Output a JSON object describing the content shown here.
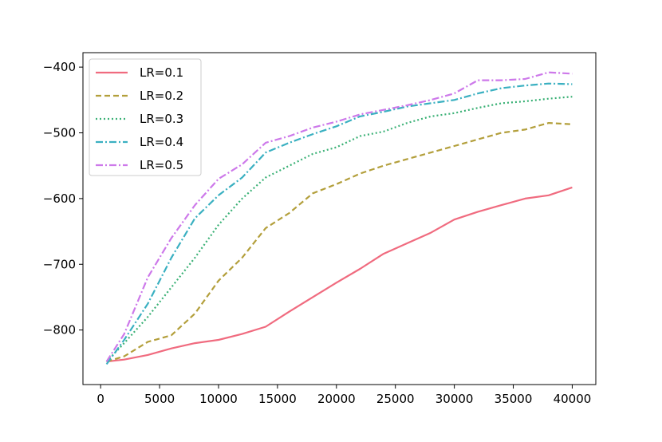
{
  "chart_data": {
    "type": "line",
    "title": "",
    "xlabel": "",
    "ylabel": "",
    "xlim": [
      -1500,
      42000
    ],
    "ylim": [
      -883,
      -378
    ],
    "grid": false,
    "legend_position": "top-left",
    "x_ticks": [
      0,
      5000,
      10000,
      15000,
      20000,
      25000,
      30000,
      35000,
      40000
    ],
    "x_tick_labels": [
      "0",
      "5000",
      "10000",
      "15000",
      "20000",
      "25000",
      "30000",
      "35000",
      "40000"
    ],
    "y_ticks": [
      -400,
      -500,
      -600,
      -700,
      -800
    ],
    "y_tick_labels": [
      "−400",
      "−500",
      "−600",
      "−700",
      "−800"
    ],
    "x": [
      500,
      2000,
      4000,
      6000,
      8000,
      10000,
      12000,
      14000,
      16000,
      18000,
      20000,
      22000,
      24000,
      26000,
      28000,
      30000,
      32000,
      34000,
      36000,
      38000,
      40000
    ],
    "series": [
      {
        "name": "LR=0.1",
        "color": "#f06b7f",
        "dash": "solid",
        "values": [
          -848,
          -845,
          -838,
          -828,
          -820,
          -815,
          -806,
          -795,
          -772,
          -750,
          -728,
          -707,
          -684,
          -668,
          -652,
          -632,
          -620,
          -610,
          -600,
          -595,
          -583
        ]
      },
      {
        "name": "LR=0.2",
        "color": "#b39f3b",
        "dash": "dashed",
        "values": [
          -848,
          -840,
          -818,
          -808,
          -775,
          -725,
          -690,
          -645,
          -622,
          -592,
          -578,
          -562,
          -550,
          -540,
          -530,
          -520,
          -510,
          -500,
          -495,
          -485,
          -487
        ]
      },
      {
        "name": "LR=0.3",
        "color": "#3bb176",
        "dash": "dotted",
        "values": [
          -848,
          -820,
          -780,
          -735,
          -690,
          -640,
          -600,
          -568,
          -550,
          -532,
          -522,
          -505,
          -498,
          -485,
          -475,
          -470,
          -462,
          -455,
          -452,
          -448,
          -445
        ]
      },
      {
        "name": "LR=0.4",
        "color": "#3ab0c1",
        "dash": "dashdot",
        "values": [
          -852,
          -815,
          -760,
          -690,
          -630,
          -595,
          -568,
          -530,
          -515,
          -502,
          -490,
          -475,
          -468,
          -460,
          -455,
          -450,
          -440,
          -432,
          -428,
          -425,
          -426
        ]
      },
      {
        "name": "LR=0.5",
        "color": "#cd79ea",
        "dash": "dashdot",
        "values": [
          -848,
          -806,
          -720,
          -660,
          -610,
          -570,
          -548,
          -515,
          -505,
          -492,
          -483,
          -472,
          -465,
          -458,
          -450,
          -440,
          -420,
          -420,
          -418,
          -408,
          -410
        ]
      }
    ]
  }
}
